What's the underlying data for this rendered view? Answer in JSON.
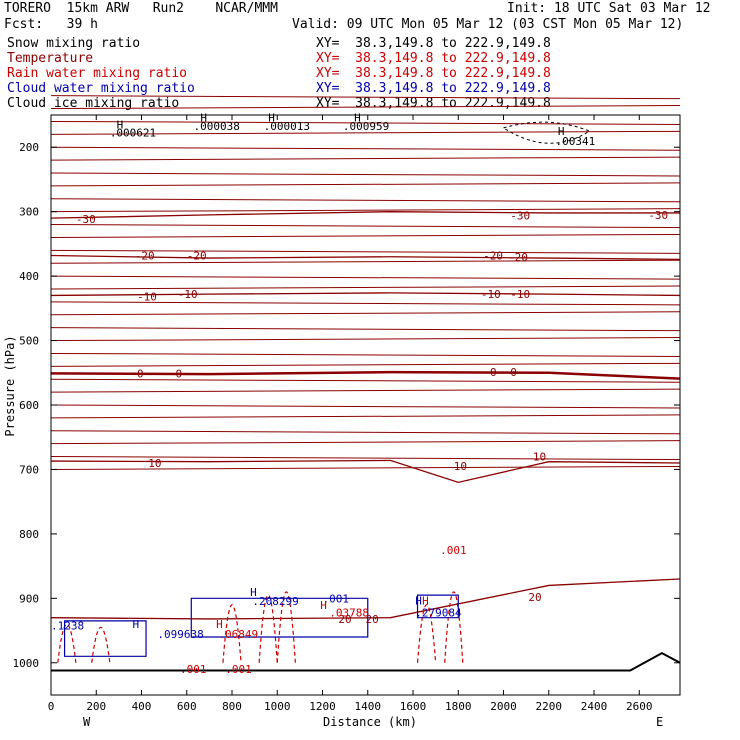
{
  "header": {
    "model": "TORERO  15km ARW   Run2    NCAR/MMM",
    "init": "Init: 18 UTC Sat 03 Mar 12",
    "fcst": "Fcst:   39 h",
    "valid": "Valid: 09 UTC Mon 05 Mar 12 (03 CST Mon 05 Mar 12)"
  },
  "legend": [
    {
      "label": "Snow mixing ratio",
      "color": "#000000",
      "xy": ""
    },
    {
      "label": "Temperature",
      "color": "#8b0000",
      "xy": "XY=  38.3,149.8 to 222.9,149.8"
    },
    {
      "label": "Rain water mixing ratio",
      "color": "#cc0000",
      "xy": "XY=  38.3,149.8 to 222.9,149.8"
    },
    {
      "label": "Cloud water mixing ratio",
      "color": "#0000aa",
      "xy": "XY=  38.3,149.8 to 222.9,149.8"
    },
    {
      "label": "Cloud ice mixing ratio",
      "color": "#000000",
      "xy": "XY=  38.3,149.8 to 222.9,149.8"
    }
  ],
  "snow_xy": "XY=  38.3,149.8 to 222.9,149.8",
  "colors": {
    "temperature": "#8b0000",
    "rain": "#cc0000",
    "cloud_water": "#0000aa",
    "ice": "#000000"
  },
  "chart_data": {
    "type": "line",
    "subtype": "cross-section contour",
    "xlabel": "Distance (km)",
    "ylabel": "Pressure (hPa)",
    "xlim": [
      0,
      2780
    ],
    "ylim": [
      1050,
      150
    ],
    "x_ticks": [
      0,
      200,
      400,
      600,
      800,
      1000,
      1200,
      1400,
      1600,
      1800,
      2000,
      2200,
      2400,
      2600
    ],
    "y_ticks": [
      200,
      300,
      400,
      500,
      600,
      700,
      800,
      900,
      1000
    ],
    "x_end_labels": {
      "left": "W",
      "right": "E"
    },
    "temperature_series": [
      {
        "level": -30,
        "x": [
          0,
          700,
          1500,
          2200,
          2780
        ],
        "y": [
          310,
          305,
          300,
          302,
          302
        ]
      },
      {
        "level": -20,
        "x": [
          0,
          700,
          1500,
          2200,
          2780
        ],
        "y": [
          368,
          372,
          370,
          372,
          374
        ]
      },
      {
        "level": -10,
        "x": [
          0,
          700,
          1500,
          2200,
          2780
        ],
        "y": [
          430,
          428,
          426,
          428,
          430
        ]
      },
      {
        "level": 0,
        "x": [
          0,
          700,
          1500,
          2200,
          2780
        ],
        "y": [
          551,
          552,
          549,
          550,
          559
        ]
      },
      {
        "level": 10,
        "x": [
          0,
          700,
          1500,
          1800,
          2200,
          2780
        ],
        "y": [
          687,
          688,
          686,
          720,
          688,
          690
        ]
      },
      {
        "level": 20,
        "x": [
          0,
          700,
          1500,
          2200,
          2780
        ],
        "y": [
          930,
          932,
          930,
          880,
          870
        ]
      }
    ],
    "contour_labels": [
      {
        "text": "-30",
        "x": 110,
        "y": 311,
        "color": "temperature"
      },
      {
        "text": "-30",
        "x": 2030,
        "y": 306,
        "color": "temperature"
      },
      {
        "text": "-30",
        "x": 2640,
        "y": 305,
        "color": "temperature"
      },
      {
        "text": "-20",
        "x": 370,
        "y": 368,
        "color": "temperature"
      },
      {
        "text": "-20",
        "x": 600,
        "y": 368,
        "color": "temperature"
      },
      {
        "text": "-20",
        "x": 1910,
        "y": 368,
        "color": "temperature"
      },
      {
        "text": "-20",
        "x": 2020,
        "y": 370,
        "color": "temperature"
      },
      {
        "text": "-10",
        "x": 380,
        "y": 432,
        "color": "temperature"
      },
      {
        "text": "-10",
        "x": 560,
        "y": 428,
        "color": "temperature"
      },
      {
        "text": "-10",
        "x": 1900,
        "y": 428,
        "color": "temperature"
      },
      {
        "text": "-10",
        "x": 2030,
        "y": 428,
        "color": "temperature"
      },
      {
        "text": "0",
        "x": 380,
        "y": 551,
        "color": "temperature"
      },
      {
        "text": "0",
        "x": 550,
        "y": 551,
        "color": "temperature"
      },
      {
        "text": "0",
        "x": 1940,
        "y": 549,
        "color": "temperature"
      },
      {
        "text": "0",
        "x": 2030,
        "y": 549,
        "color": "temperature"
      },
      {
        "text": "10",
        "x": 430,
        "y": 690,
        "color": "temperature"
      },
      {
        "text": "10",
        "x": 1780,
        "y": 695,
        "color": "temperature"
      },
      {
        "text": "10",
        "x": 2130,
        "y": 680,
        "color": "temperature"
      },
      {
        "text": "20",
        "x": 1270,
        "y": 932,
        "color": "temperature"
      },
      {
        "text": "20",
        "x": 1390,
        "y": 932,
        "color": "temperature"
      },
      {
        "text": "20",
        "x": 2110,
        "y": 898,
        "color": "temperature"
      },
      {
        "text": ".001",
        "x": 1720,
        "y": 825,
        "color": "rain"
      },
      {
        "text": ".001",
        "x": 1200,
        "y": 900,
        "color": "cloud_water"
      },
      {
        "text": ".208299",
        "x": 890,
        "y": 904,
        "color": "cloud_water"
      },
      {
        "text": ".279084",
        "x": 1610,
        "y": 922,
        "color": "cloud_water"
      },
      {
        "text": ".03788",
        "x": 1230,
        "y": 922,
        "color": "rain"
      },
      {
        "text": ".099638",
        "x": 470,
        "y": 955,
        "color": "cloud_water"
      },
      {
        "text": ".06849",
        "x": 740,
        "y": 955,
        "color": "rain"
      },
      {
        "text": ".1238",
        "x": 0,
        "y": 942,
        "color": "cloud_water"
      },
      {
        "text": ".001",
        "x": 570,
        "y": 1010,
        "color": "rain"
      },
      {
        "text": ".001",
        "x": 770,
        "y": 1010,
        "color": "rain"
      },
      {
        "text": ".000621",
        "x": 260,
        "y": 177,
        "color": "ice"
      },
      {
        "text": ".000038",
        "x": 630,
        "y": 167,
        "color": "ice"
      },
      {
        "text": ".000013",
        "x": 940,
        "y": 167,
        "color": "ice"
      },
      {
        "text": ".000959",
        "x": 1290,
        "y": 167,
        "color": "ice"
      },
      {
        "text": ".00341",
        "x": 2230,
        "y": 190,
        "color": "ice"
      }
    ],
    "extrema_labels": [
      {
        "text": "H",
        "x": 290,
        "y": 165,
        "color": "ice"
      },
      {
        "text": "H",
        "x": 660,
        "y": 154,
        "color": "ice"
      },
      {
        "text": "H",
        "x": 960,
        "y": 154,
        "color": "ice"
      },
      {
        "text": "H",
        "x": 1340,
        "y": 154,
        "color": "ice"
      },
      {
        "text": "H",
        "x": 2240,
        "y": 175,
        "color": "ice"
      },
      {
        "text": "H",
        "x": 360,
        "y": 940,
        "color": "cloud_water"
      },
      {
        "text": "H",
        "x": 880,
        "y": 890,
        "color": "cloud_water"
      },
      {
        "text": "H",
        "x": 730,
        "y": 940,
        "color": "rain"
      },
      {
        "text": "H",
        "x": 1190,
        "y": 910,
        "color": "rain"
      },
      {
        "text": "H",
        "x": 1610,
        "y": 903,
        "color": "cloud_water"
      },
      {
        "text": "H",
        "x": 1640,
        "y": 903,
        "color": "rain"
      }
    ]
  }
}
